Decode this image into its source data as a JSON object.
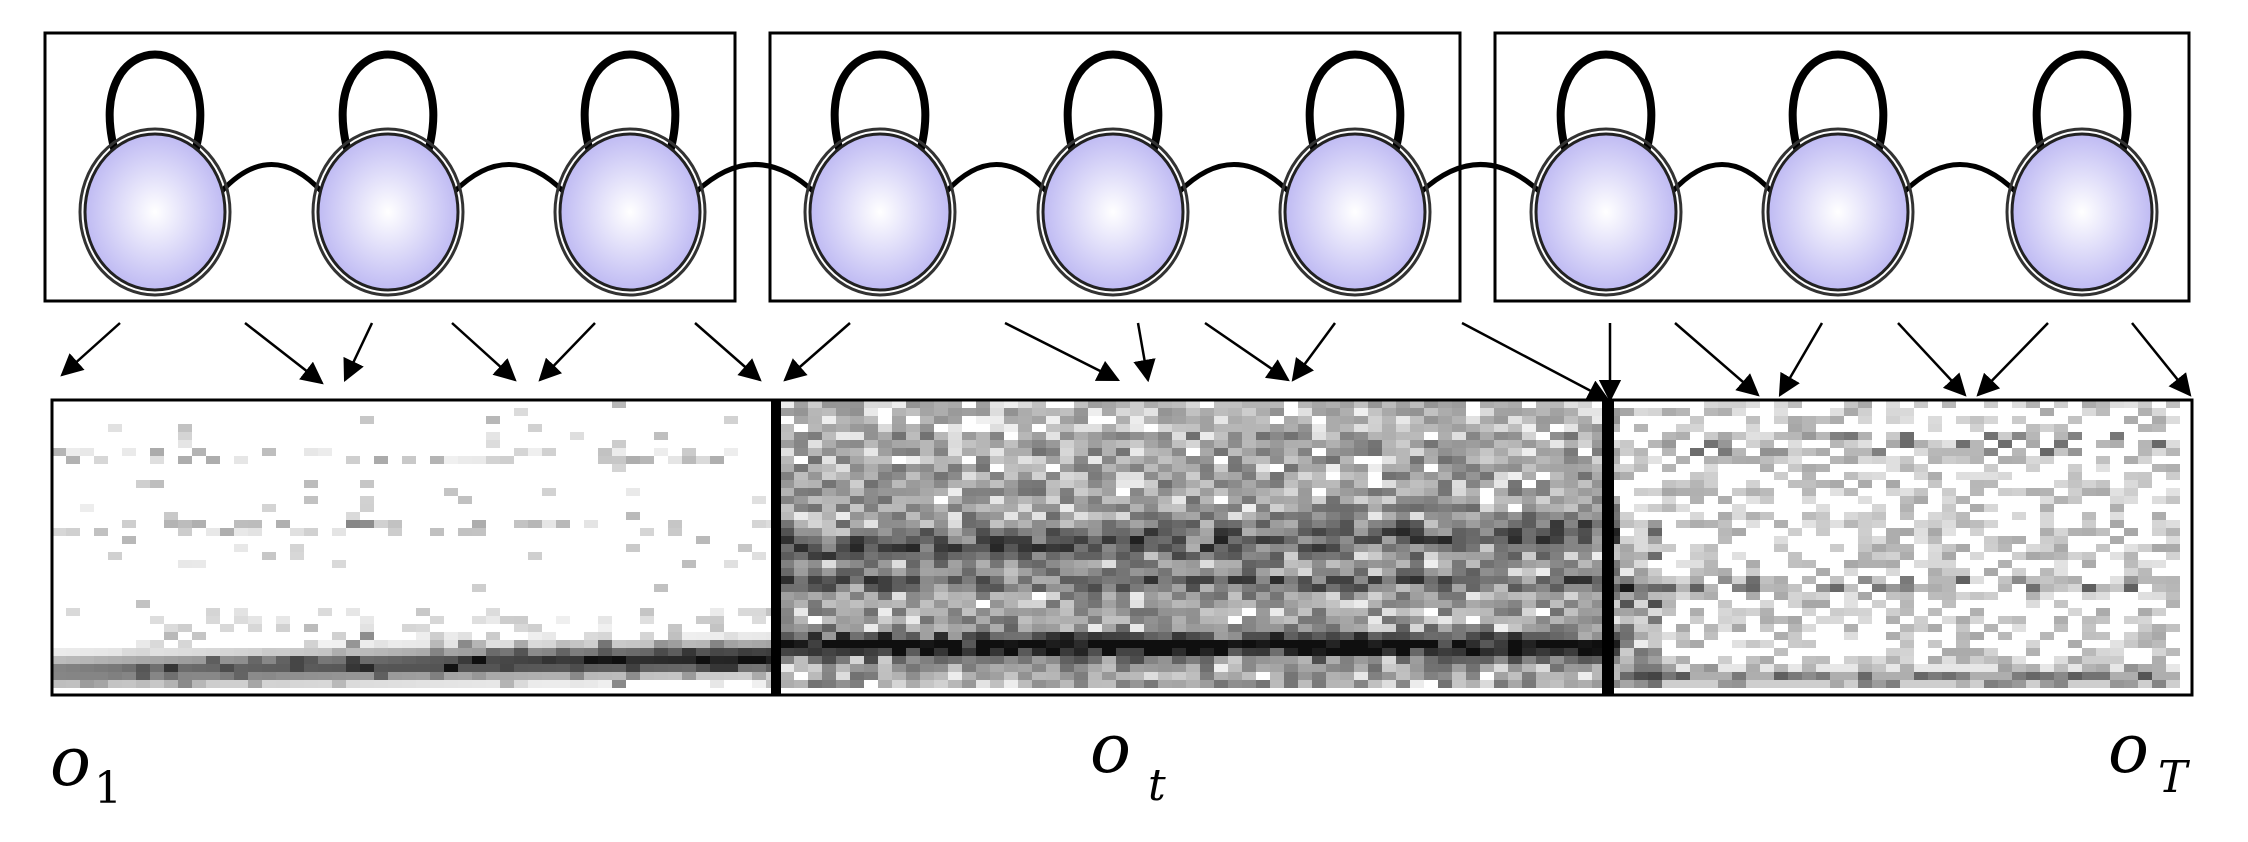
{
  "diagram": {
    "type": "hmm-to-spectrogram",
    "models": [
      {
        "name": "hmm-1",
        "states": 3
      },
      {
        "name": "hmm-2",
        "states": 3
      },
      {
        "name": "hmm-3",
        "states": 3
      }
    ],
    "state_fill_center": "#ffffff",
    "state_fill_edge": "#b9b4f2",
    "line_color": "#000000",
    "labels": {
      "o_first": {
        "main": "o",
        "sub": "1"
      },
      "o_mid": {
        "main": "o",
        "sub": "t"
      },
      "o_last": {
        "main": "o",
        "sub": "T"
      }
    }
  }
}
